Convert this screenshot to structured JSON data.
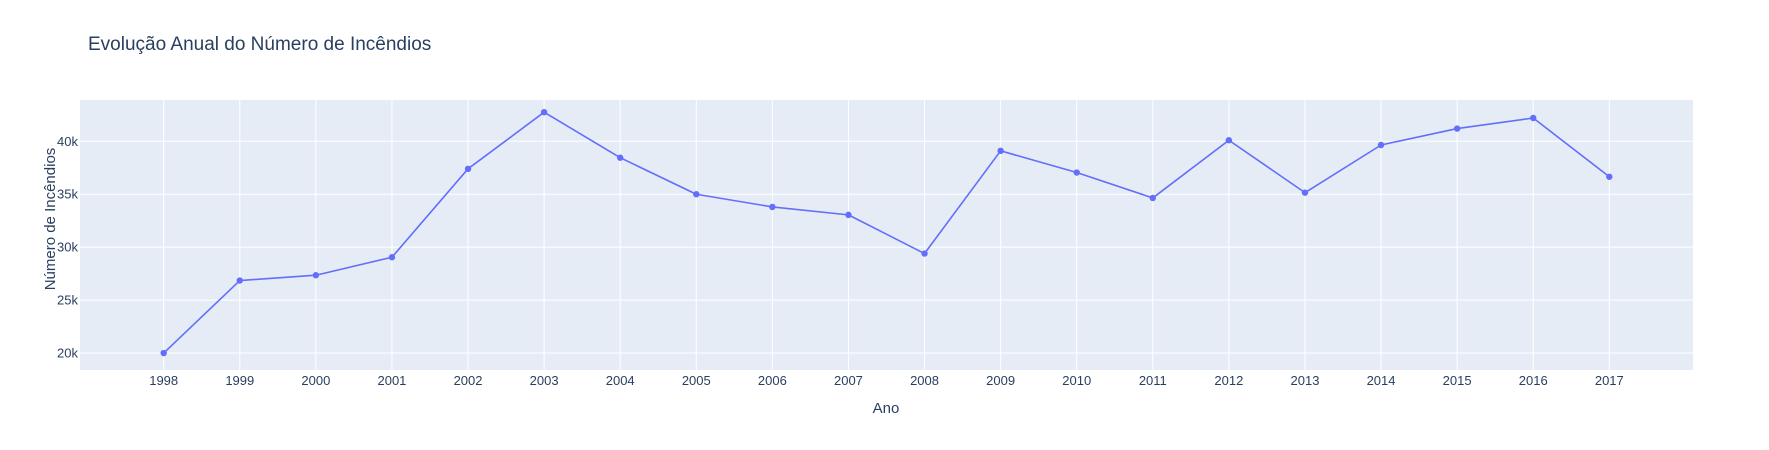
{
  "chart_data": {
    "type": "line",
    "title": "Evolução Anual do Número de Incêndios",
    "xlabel": "Ano",
    "ylabel": "Número de Incêndios",
    "x": [
      1998,
      1999,
      2000,
      2001,
      2002,
      2003,
      2004,
      2005,
      2006,
      2007,
      2008,
      2009,
      2010,
      2011,
      2012,
      2013,
      2014,
      2015,
      2016,
      2017
    ],
    "x_tick_labels": [
      "1998",
      "1999",
      "2000",
      "2001",
      "2002",
      "2003",
      "2004",
      "2005",
      "2006",
      "2007",
      "2008",
      "2009",
      "2010",
      "2011",
      "2012",
      "2013",
      "2014",
      "2015",
      "2016",
      "2017"
    ],
    "series": [
      {
        "values": [
          20000,
          26850,
          27350,
          29050,
          37400,
          42750,
          38450,
          35000,
          33800,
          33050,
          29400,
          39100,
          37050,
          34650,
          40100,
          35150,
          39650,
          41200,
          42200,
          36650
        ],
        "color": "#636efa"
      }
    ],
    "xlim": [
      1996.9,
      2018.1
    ],
    "ylim": [
      18400,
      43900
    ],
    "y_ticks": [
      20000,
      25000,
      30000,
      35000,
      40000
    ],
    "y_tick_labels": [
      "20k",
      "25k",
      "30k",
      "35k",
      "40k"
    ],
    "grid": true,
    "colors": {
      "plot_background": "#e5ecf6",
      "grid": "#ffffff",
      "text": "#2a3f5f"
    }
  }
}
